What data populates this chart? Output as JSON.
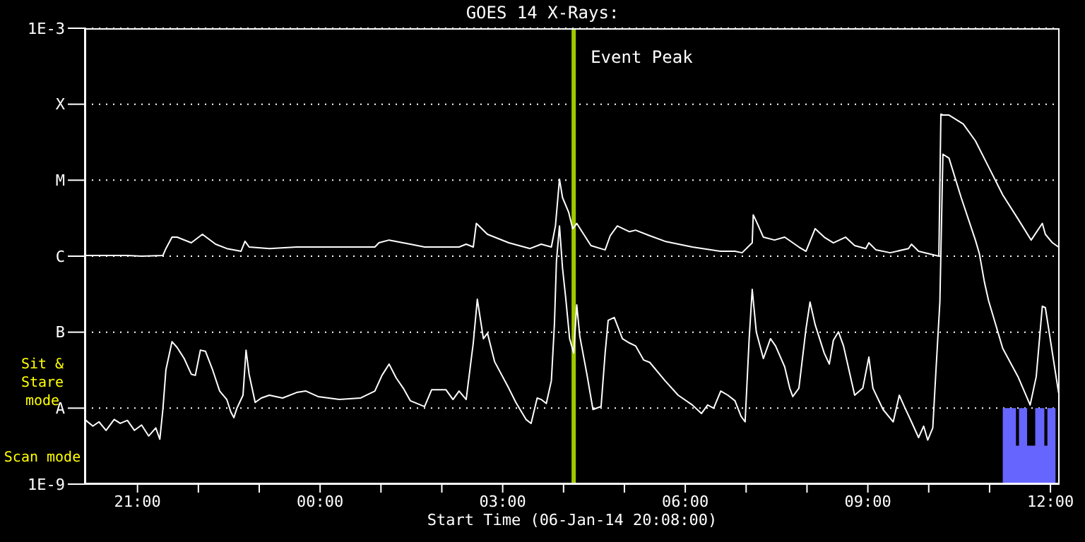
{
  "chart_data": {
    "type": "line",
    "title": "GOES 14 X-Rays:",
    "xlabel": "Start Time (06-Jan-14 20:08:00)",
    "log": true,
    "grid": "y",
    "legend": false,
    "marker": "none",
    "line_style": "solid",
    "xlim": [
      "--01-06T20:08",
      "--01-07T12:09"
    ],
    "xticks": [
      {
        "value": "--01-06T21:00",
        "label": "21:00"
      },
      {
        "value": "--01-06T22:00",
        "label": null
      },
      {
        "value": "--01-06T23:00",
        "label": null
      },
      {
        "value": "--01-07T00:00",
        "label": "00:00"
      },
      {
        "value": "--01-07T01:00",
        "label": null
      },
      {
        "value": "--01-07T02:00",
        "label": null
      },
      {
        "value": "--01-07T03:00",
        "label": "03:00"
      },
      {
        "value": "--01-07T04:00",
        "label": null
      },
      {
        "value": "--01-07T05:00",
        "label": null
      },
      {
        "value": "--01-07T06:00",
        "label": "06:00"
      },
      {
        "value": "--01-07T07:00",
        "label": null
      },
      {
        "value": "--01-07T08:00",
        "label": null
      },
      {
        "value": "--01-07T09:00",
        "label": "09:00"
      },
      {
        "value": "--01-07T10:00",
        "label": null
      },
      {
        "value": "--01-07T11:00",
        "label": null
      },
      {
        "value": "--01-07T12:00",
        "label": "12:00"
      }
    ],
    "ylim": [
      1e-09,
      0.001
    ],
    "yticks": [
      {
        "value": 1e-09,
        "label": "1E-9"
      },
      {
        "value": 1e-08,
        "label": "A"
      },
      {
        "value": 1e-07,
        "label": "B"
      },
      {
        "value": 1e-06,
        "label": "C"
      },
      {
        "value": 1e-05,
        "label": "M"
      },
      {
        "value": 0.0001,
        "label": "X"
      },
      {
        "value": 0.001,
        "label": "1E-3"
      }
    ],
    "ref_lines": [
      {
        "axis": "x",
        "value": "--01-07T04:10",
        "label": "Event Peak",
        "color": "#a0c800"
      }
    ],
    "annotations": [
      "Sit & Stare mode",
      "Scan mode"
    ],
    "series": [
      {
        "color": "#ffffff",
        "x": [
          "--01-06T20:08",
          "--01-06T20:50",
          "--01-06T21:04",
          "--01-06T21:25",
          "--01-06T21:28",
          "--01-06T21:34",
          "--01-06T21:39",
          "--01-06T21:53",
          "--01-06T22:04",
          "--01-06T22:17",
          "--01-06T22:28",
          "--01-06T22:42",
          "--01-06T22:46",
          "--01-06T22:50",
          "--01-06T23:10",
          "--01-06T23:37",
          "--01-07T00:19",
          "--01-07T00:54",
          "--01-07T00:58",
          "--01-07T01:08",
          "--01-07T01:29",
          "--01-07T01:43",
          "--01-07T02:17",
          "--01-07T02:24",
          "--01-07T02:31",
          "--01-07T02:34",
          "--01-07T02:45",
          "--01-07T03:06",
          "--01-07T03:27",
          "--01-07T03:38",
          "--01-07T03:48",
          "--01-07T03:52",
          "--01-07T03:56",
          "--01-07T03:59",
          "--01-07T04:05",
          "--01-07T04:09",
          "--01-07T04:13",
          "--01-07T04:27",
          "--01-07T04:41",
          "--01-07T04:46",
          "--01-07T04:53",
          "--01-07T05:05",
          "--01-07T05:11",
          "--01-07T05:25",
          "--01-07T05:40",
          "--01-07T06:07",
          "--01-07T06:35",
          "--01-07T06:49",
          "--01-07T06:56",
          "--01-07T07:06",
          "--01-07T07:07",
          "--01-07T07:11",
          "--01-07T07:17",
          "--01-07T07:28",
          "--01-07T07:38",
          "--01-07T07:52",
          "--01-07T07:59",
          "--01-07T08:08",
          "--01-07T08:17",
          "--01-07T08:26",
          "--01-07T08:38",
          "--01-07T08:47",
          "--01-07T08:58",
          "--01-07T09:01",
          "--01-07T09:08",
          "--01-07T09:22",
          "--01-07T09:40",
          "--01-07T09:43",
          "--01-07T09:50",
          "--01-07T10:10",
          "--01-07T10:12",
          "--01-07T10:14",
          "--01-07T10:20",
          "--01-07T10:34",
          "--01-07T10:46",
          "--01-07T10:59",
          "--01-07T11:13",
          "--01-07T11:28",
          "--01-07T11:41",
          "--01-07T11:52",
          "--01-07T11:55",
          "--01-07T12:02",
          "--01-07T12:08"
        ],
        "values": [
          1.02e-06,
          1.02e-06,
          1e-06,
          1.02e-06,
          1.26e-06,
          1.78e-06,
          1.78e-06,
          1.5e-06,
          1.94e-06,
          1.44e-06,
          1.26e-06,
          1.16e-06,
          1.57e-06,
          1.32e-06,
          1.26e-06,
          1.32e-06,
          1.32e-06,
          1.32e-06,
          1.5e-06,
          1.63e-06,
          1.44e-06,
          1.32e-06,
          1.32e-06,
          1.44e-06,
          1.32e-06,
          2.7e-06,
          1.94e-06,
          1.5e-06,
          1.26e-06,
          1.44e-06,
          1.32e-06,
          2.5e-06,
          1.03e-05,
          5.9e-06,
          3.8e-06,
          2.3e-06,
          2.7e-06,
          1.38e-06,
          1.21e-06,
          1.86e-06,
          2.5e-06,
          2.1e-06,
          2.2e-06,
          1.86e-06,
          1.57e-06,
          1.32e-06,
          1.16e-06,
          1.16e-06,
          1.11e-06,
          1.5e-06,
          3.5e-06,
          2.7e-06,
          1.78e-06,
          1.63e-06,
          1.78e-06,
          1.32e-06,
          1.16e-06,
          2.3e-06,
          1.78e-06,
          1.5e-06,
          1.78e-06,
          1.38e-06,
          1.26e-06,
          1.5e-06,
          1.21e-06,
          1.11e-06,
          1.26e-06,
          1.44e-06,
          1.16e-06,
          1e-06,
          7.4e-05,
          7.2e-05,
          7.2e-05,
          5.5e-05,
          3.3e-05,
          1.5e-05,
          6.4e-06,
          3.1e-06,
          1.63e-06,
          2.7e-06,
          1.94e-06,
          1.5e-06,
          1.32e-06
        ]
      },
      {
        "color": "#ffffff",
        "x": [
          "--01-06T20:08",
          "--01-06T20:16",
          "--01-06T20:22",
          "--01-06T20:29",
          "--01-06T20:37",
          "--01-06T20:43",
          "--01-06T20:50",
          "--01-06T20:57",
          "--01-06T21:04",
          "--01-06T21:11",
          "--01-06T21:18",
          "--01-06T21:22",
          "--01-06T21:25",
          "--01-06T21:28",
          "--01-06T21:34",
          "--01-06T21:39",
          "--01-06T21:46",
          "--01-06T21:53",
          "--01-06T21:57",
          "--01-06T22:02",
          "--01-06T22:07",
          "--01-06T22:14",
          "--01-06T22:21",
          "--01-06T22:28",
          "--01-06T22:32",
          "--01-06T22:35",
          "--01-06T22:38",
          "--01-06T22:44",
          "--01-06T22:47",
          "--01-06T22:50",
          "--01-06T22:56",
          "--01-06T23:02",
          "--01-06T23:10",
          "--01-06T23:23",
          "--01-06T23:37",
          "--01-06T23:46",
          "--01-06T23:58",
          "--01-07T00:19",
          "--01-07T00:40",
          "--01-07T00:54",
          "--01-07T01:01",
          "--01-07T01:08",
          "--01-07T01:15",
          "--01-07T01:22",
          "--01-07T01:29",
          "--01-07T01:43",
          "--01-07T01:50",
          "--01-07T02:04",
          "--01-07T02:11",
          "--01-07T02:17",
          "--01-07T02:24",
          "--01-07T02:31",
          "--01-07T02:35",
          "--01-07T02:41",
          "--01-07T02:45",
          "--01-07T02:52",
          "--01-07T03:06",
          "--01-07T03:13",
          "--01-07T03:23",
          "--01-07T03:28",
          "--01-07T03:34",
          "--01-07T03:38",
          "--01-07T03:43",
          "--01-07T03:48",
          "--01-07T03:51",
          "--01-07T03:53",
          "--01-07T03:56",
          "--01-07T03:59",
          "--01-07T04:02",
          "--01-07T04:06",
          "--01-07T04:10",
          "--01-07T04:13",
          "--01-07T04:16",
          "--01-07T04:23",
          "--01-07T04:29",
          "--01-07T04:37",
          "--01-07T04:41",
          "--01-07T04:44",
          "--01-07T04:50",
          "--01-07T04:58",
          "--01-07T05:05",
          "--01-07T05:11",
          "--01-07T05:19",
          "--01-07T05:25",
          "--01-07T05:40",
          "--01-07T05:53",
          "--01-07T06:07",
          "--01-07T06:16",
          "--01-07T06:22",
          "--01-07T06:28",
          "--01-07T06:35",
          "--01-07T06:42",
          "--01-07T06:49",
          "--01-07T06:55",
          "--01-07T06:59",
          "--01-07T07:03",
          "--01-07T07:06",
          "--01-07T07:10",
          "--01-07T07:17",
          "--01-07T07:24",
          "--01-07T07:29",
          "--01-07T07:38",
          "--01-07T07:43",
          "--01-07T07:46",
          "--01-07T07:52",
          "--01-07T07:59",
          "--01-07T08:03",
          "--01-07T08:08",
          "--01-07T08:17",
          "--01-07T08:22",
          "--01-07T08:26",
          "--01-07T08:31",
          "--01-07T08:36",
          "--01-07T08:47",
          "--01-07T08:55",
          "--01-07T09:01",
          "--01-07T09:05",
          "--01-07T09:15",
          "--01-07T09:25",
          "--01-07T09:31",
          "--01-07T09:36",
          "--01-07T09:43",
          "--01-07T09:50",
          "--01-07T09:55",
          "--01-07T09:59",
          "--01-07T10:04",
          "--01-07T10:07",
          "--01-07T10:11",
          "--01-07T10:14",
          "--01-07T10:20",
          "--01-07T10:32",
          "--01-07T10:46",
          "--01-07T10:50",
          "--01-07T10:55",
          "--01-07T10:59",
          "--01-07T11:13",
          "--01-07T11:28",
          "--01-07T11:40",
          "--01-07T11:46",
          "--01-07T11:52",
          "--01-07T11:55",
          "--01-07T12:08"
        ],
        "type": "line",
        "values": [
          7.1e-09,
          5.8e-09,
          6.6e-09,
          5.1e-09,
          7.1e-09,
          6.3e-09,
          6.9e-09,
          5.1e-09,
          6e-09,
          4.3e-09,
          5.5e-09,
          3.9e-09,
          9.6e-09,
          3.2e-08,
          7.5e-08,
          6.3e-08,
          4.5e-08,
          2.8e-08,
          2.7e-08,
          5.8e-08,
          5.6e-08,
          3.2e-08,
          1.68e-08,
          1.3e-08,
          8.9e-09,
          7.5e-09,
          1e-08,
          1.48e-08,
          5.8e-08,
          2.8e-08,
          1.19e-08,
          1.36e-08,
          1.48e-08,
          1.36e-08,
          1.61e-08,
          1.68e-08,
          1.42e-08,
          1.3e-08,
          1.36e-08,
          1.68e-08,
          2.7e-08,
          3.8e-08,
          2.5e-08,
          1.83e-08,
          1.25e-08,
          1.05e-08,
          1.75e-08,
          1.75e-08,
          1.3e-08,
          1.68e-08,
          1.3e-08,
          7.2e-08,
          2.71e-07,
          8.2e-08,
          9.7e-08,
          4.1e-08,
          1.83e-08,
          1.19e-08,
          7.1e-09,
          6.3e-09,
          1.36e-08,
          1.3e-08,
          1.15e-08,
          2.3e-08,
          1.26e-07,
          8.6e-07,
          2.5e-06,
          6.95e-07,
          2.95e-07,
          8.2e-08,
          5.3e-08,
          2.29e-07,
          8.9e-08,
          2.8e-08,
          9.6e-09,
          1.05e-08,
          5.3e-08,
          1.43e-07,
          1.56e-07,
          8.2e-08,
          7.2e-08,
          6.6e-08,
          4.3e-08,
          4e-08,
          2.3e-08,
          1.48e-08,
          1.1e-08,
          8.5e-09,
          1.1e-08,
          1e-08,
          1.68e-08,
          1.48e-08,
          1.25e-08,
          7.8e-09,
          6.6e-09,
          8.2e-08,
          3.66e-07,
          1.01e-07,
          4.5e-08,
          8.2e-08,
          6.6e-08,
          3.5e-08,
          1.83e-08,
          1.42e-08,
          1.83e-08,
          1.1e-07,
          2.49e-07,
          1.26e-07,
          5.3e-08,
          3.8e-08,
          7.8e-08,
          1.01e-07,
          6.6e-08,
          1.48e-08,
          1.83e-08,
          4.7e-08,
          1.83e-08,
          9.6e-09,
          6.6e-09,
          1.48e-08,
          1.05e-08,
          6.6e-09,
          4.1e-09,
          5.8e-09,
          3.8e-09,
          5.5e-09,
          2.9e-08,
          2.49e-07,
          2.2e-05,
          1.95e-05,
          5.9e-06,
          1.63e-06,
          1.07e-06,
          4.5e-07,
          2.6e-07,
          6.1e-08,
          2.6e-08,
          1.1e-08,
          2.6e-08,
          2.19e-07,
          2.1e-07,
          1.6e-08
        ]
      },
      {
        "type": "area",
        "color": "#6666ff",
        "x": [
          "--01-07T11:13",
          "--01-07T11:26",
          "--01-07T11:26",
          "--01-07T11:29",
          "--01-07T11:29",
          "--01-07T11:37",
          "--01-07T11:37",
          "--01-07T11:45",
          "--01-07T11:45",
          "--01-07T11:54",
          "--01-07T11:54",
          "--01-07T11:57",
          "--01-07T11:57",
          "--01-07T12:05"
        ],
        "values": [
          1e-08,
          1e-08,
          3.2e-09,
          3.2e-09,
          1e-08,
          1e-08,
          3.2e-09,
          3.2e-09,
          1e-08,
          1e-08,
          3.2e-09,
          3.2e-09,
          1e-08,
          1e-08
        ]
      }
    ]
  }
}
